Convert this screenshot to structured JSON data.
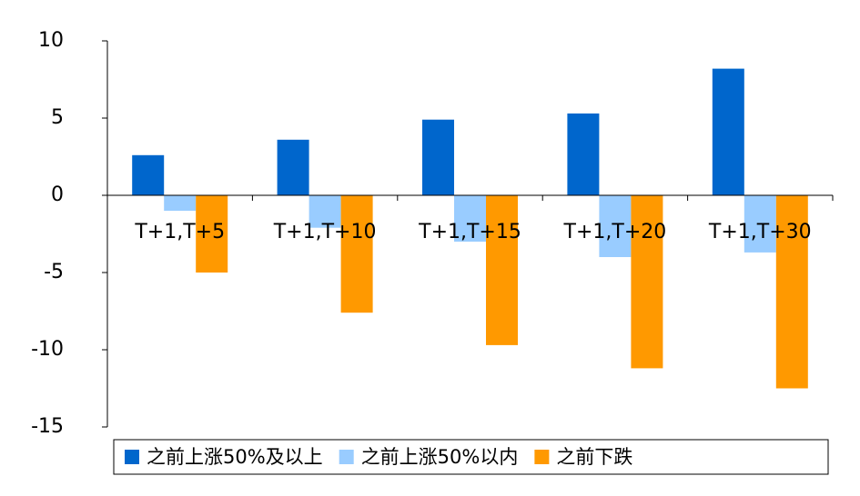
{
  "chart_data": {
    "type": "bar",
    "categories": [
      "T+1,T+5",
      "T+1,T+10",
      "T+1,T+15",
      "T+1,T+20",
      "T+1,T+30"
    ],
    "series": [
      {
        "name": "之前上涨50%及以上",
        "color": "#0066cc",
        "values": [
          2.6,
          3.6,
          4.9,
          5.3,
          8.2
        ]
      },
      {
        "name": "之前上涨50%以内",
        "color": "#99ccff",
        "values": [
          -1.0,
          -2.1,
          -3.0,
          -4.0,
          -3.7
        ]
      },
      {
        "name": "之前下跌",
        "color": "#ff9900",
        "values": [
          -5.0,
          -7.6,
          -9.7,
          -11.2,
          -12.5
        ]
      }
    ],
    "ylim": [
      -15,
      10
    ],
    "yticks": [
      -15,
      -10,
      -5,
      0,
      5,
      10
    ],
    "legend": "bottom"
  }
}
